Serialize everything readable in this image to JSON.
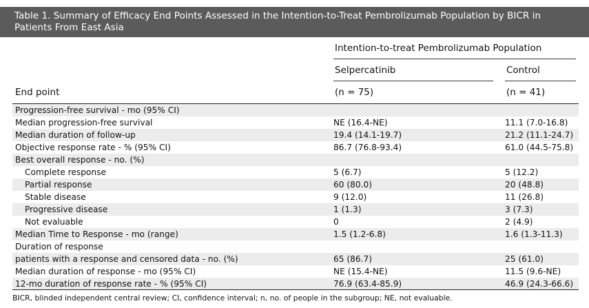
{
  "title": "Table 1. Summary of Efficacy End Points Assessed in the Intention-to-Treat Pembrolizumab Population by BICR in Patients From East Asia",
  "header": {
    "group_label": "Intention-to-treat Pembrolizumab Population",
    "col1_name": "Selpercatinib",
    "col2_name": "Control",
    "endpoint_label": "End point",
    "col1_n": "(n = 75)",
    "col2_n": "(n = 41)"
  },
  "rows": [
    {
      "label": "Progression-free survival - mo (95% CI)",
      "v1": "",
      "v2": ""
    },
    {
      "label": "Median progression-free survival",
      "v1": "NE (16.4-NE)",
      "v2": "11.1 (7.0-16.8)"
    },
    {
      "label": "Median duration of follow-up",
      "v1": "19.4 (14.1-19.7)",
      "v2": "21.2 (11.1-24.7)"
    },
    {
      "label": "Objective response rate - % (95% CI)",
      "v1": "86.7 (76.8-93.4)",
      "v2": "61.0 (44.5-75.8)"
    },
    {
      "label": "Best overall response - no. (%)",
      "v1": "",
      "v2": ""
    },
    {
      "label": "Complete response",
      "v1": "5 (6.7)",
      "v2": "5 (12.2)"
    },
    {
      "label": "Partial response",
      "v1": "60 (80.0)",
      "v2": "20 (48.8)"
    },
    {
      "label": "Stable disease",
      "v1": "9 (12.0)",
      "v2": "11 (26.8)"
    },
    {
      "label": "Progressive disease",
      "v1": "1 (1.3)",
      "v2": "3 (7.3)"
    },
    {
      "label": "Not evaluable",
      "v1": "0",
      "v2": "2 (4.9)"
    },
    {
      "label": "Median Time to Response - mo (range)",
      "v1": "1.5 (1.2-6.8)",
      "v2": "1.6 (1.3-11.3)"
    },
    {
      "label": "Duration of response",
      "v1": "",
      "v2": ""
    },
    {
      "label": "patients with a response and censored data - no. (%)",
      "v1": "65 (86.7)",
      "v2": "25 (61.0)"
    },
    {
      "label": "Median duration of response - mo (95% CI)",
      "v1": "NE (15.4-NE)",
      "v2": "11.5 (9.6-NE)"
    },
    {
      "label": "12-mo duration of response rate - % (95% CI)",
      "v1": "76.9 (63.4-85.9)",
      "v2": "46.9 (24.3-66.6)"
    }
  ],
  "footnote": "BICR, blinded independent central review; CI, confidence interval; n, no. of people in the subgroup; NE, not evaluable."
}
